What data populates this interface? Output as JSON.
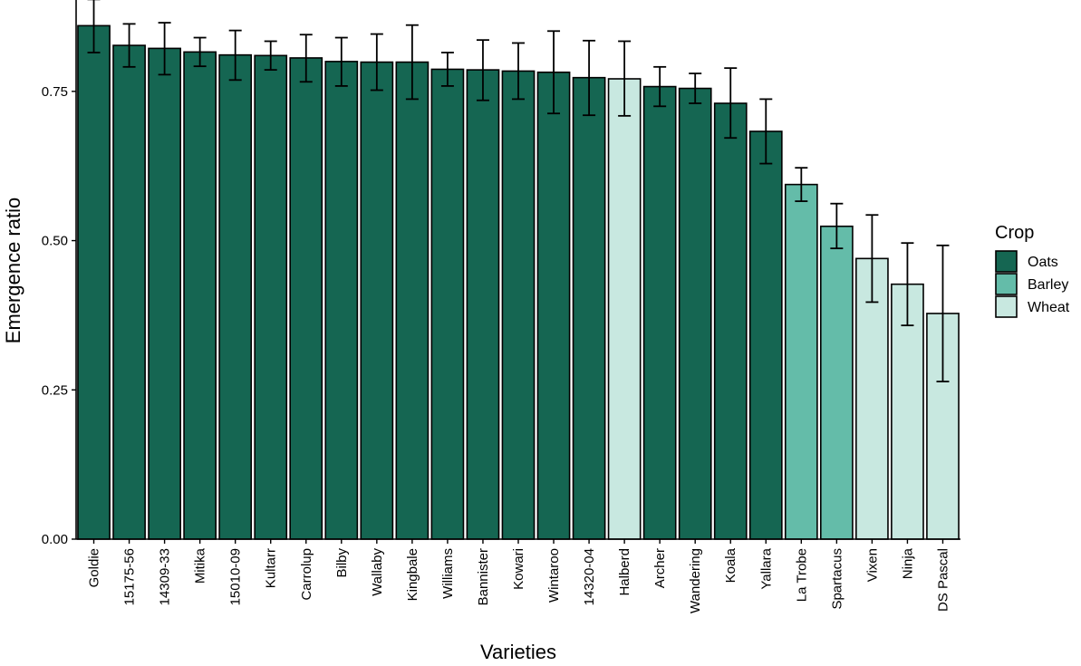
{
  "chart_data": {
    "type": "bar",
    "xlabel": "Varieties",
    "ylabel": "Emergence ratio",
    "ylim": [
      0,
      0.9
    ],
    "yticks": [
      "0.00",
      "0.25",
      "0.50",
      "0.75"
    ],
    "grid": false,
    "legend": {
      "title": "Crop",
      "placement": "right",
      "entries": [
        {
          "name": "Oats",
          "color": "#156652"
        },
        {
          "name": "Barley",
          "color": "#64bca9"
        },
        {
          "name": "Wheat",
          "color": "#c8e8e0"
        }
      ]
    },
    "categories": [
      "Goldie",
      "15175-56",
      "14309-33",
      "Mitika",
      "15010-09",
      "Kultarr",
      "Carrolup",
      "Bilby",
      "Wallaby",
      "Kingbale",
      "Williams",
      "Bannister",
      "Kowari",
      "Wintaroo",
      "14320-04",
      "Halberd",
      "Archer",
      "Wandering",
      "Koala",
      "Yallara",
      "La Trobe",
      "Spartacus",
      "Vixen",
      "Ninja",
      "DS Pascal"
    ],
    "crop": [
      "Oats",
      "Oats",
      "Oats",
      "Oats",
      "Oats",
      "Oats",
      "Oats",
      "Oats",
      "Oats",
      "Oats",
      "Oats",
      "Oats",
      "Oats",
      "Oats",
      "Oats",
      "Wheat",
      "Oats",
      "Oats",
      "Oats",
      "Oats",
      "Barley",
      "Barley",
      "Wheat",
      "Wheat",
      "Wheat"
    ],
    "values": [
      0.86,
      0.827,
      0.822,
      0.816,
      0.811,
      0.81,
      0.806,
      0.8,
      0.799,
      0.799,
      0.787,
      0.786,
      0.784,
      0.782,
      0.773,
      0.771,
      0.758,
      0.755,
      0.73,
      0.683,
      0.594,
      0.524,
      0.47,
      0.427,
      0.378
    ],
    "error_low": [
      0.815,
      0.791,
      0.778,
      0.792,
      0.769,
      0.786,
      0.766,
      0.759,
      0.752,
      0.737,
      0.759,
      0.735,
      0.737,
      0.713,
      0.71,
      0.709,
      0.725,
      0.73,
      0.672,
      0.629,
      0.566,
      0.487,
      0.397,
      0.358,
      0.264
    ],
    "error_high": [
      0.904,
      0.863,
      0.865,
      0.84,
      0.852,
      0.834,
      0.845,
      0.84,
      0.846,
      0.861,
      0.815,
      0.836,
      0.831,
      0.851,
      0.835,
      0.834,
      0.791,
      0.78,
      0.789,
      0.737,
      0.622,
      0.562,
      0.543,
      0.496,
      0.492
    ]
  }
}
